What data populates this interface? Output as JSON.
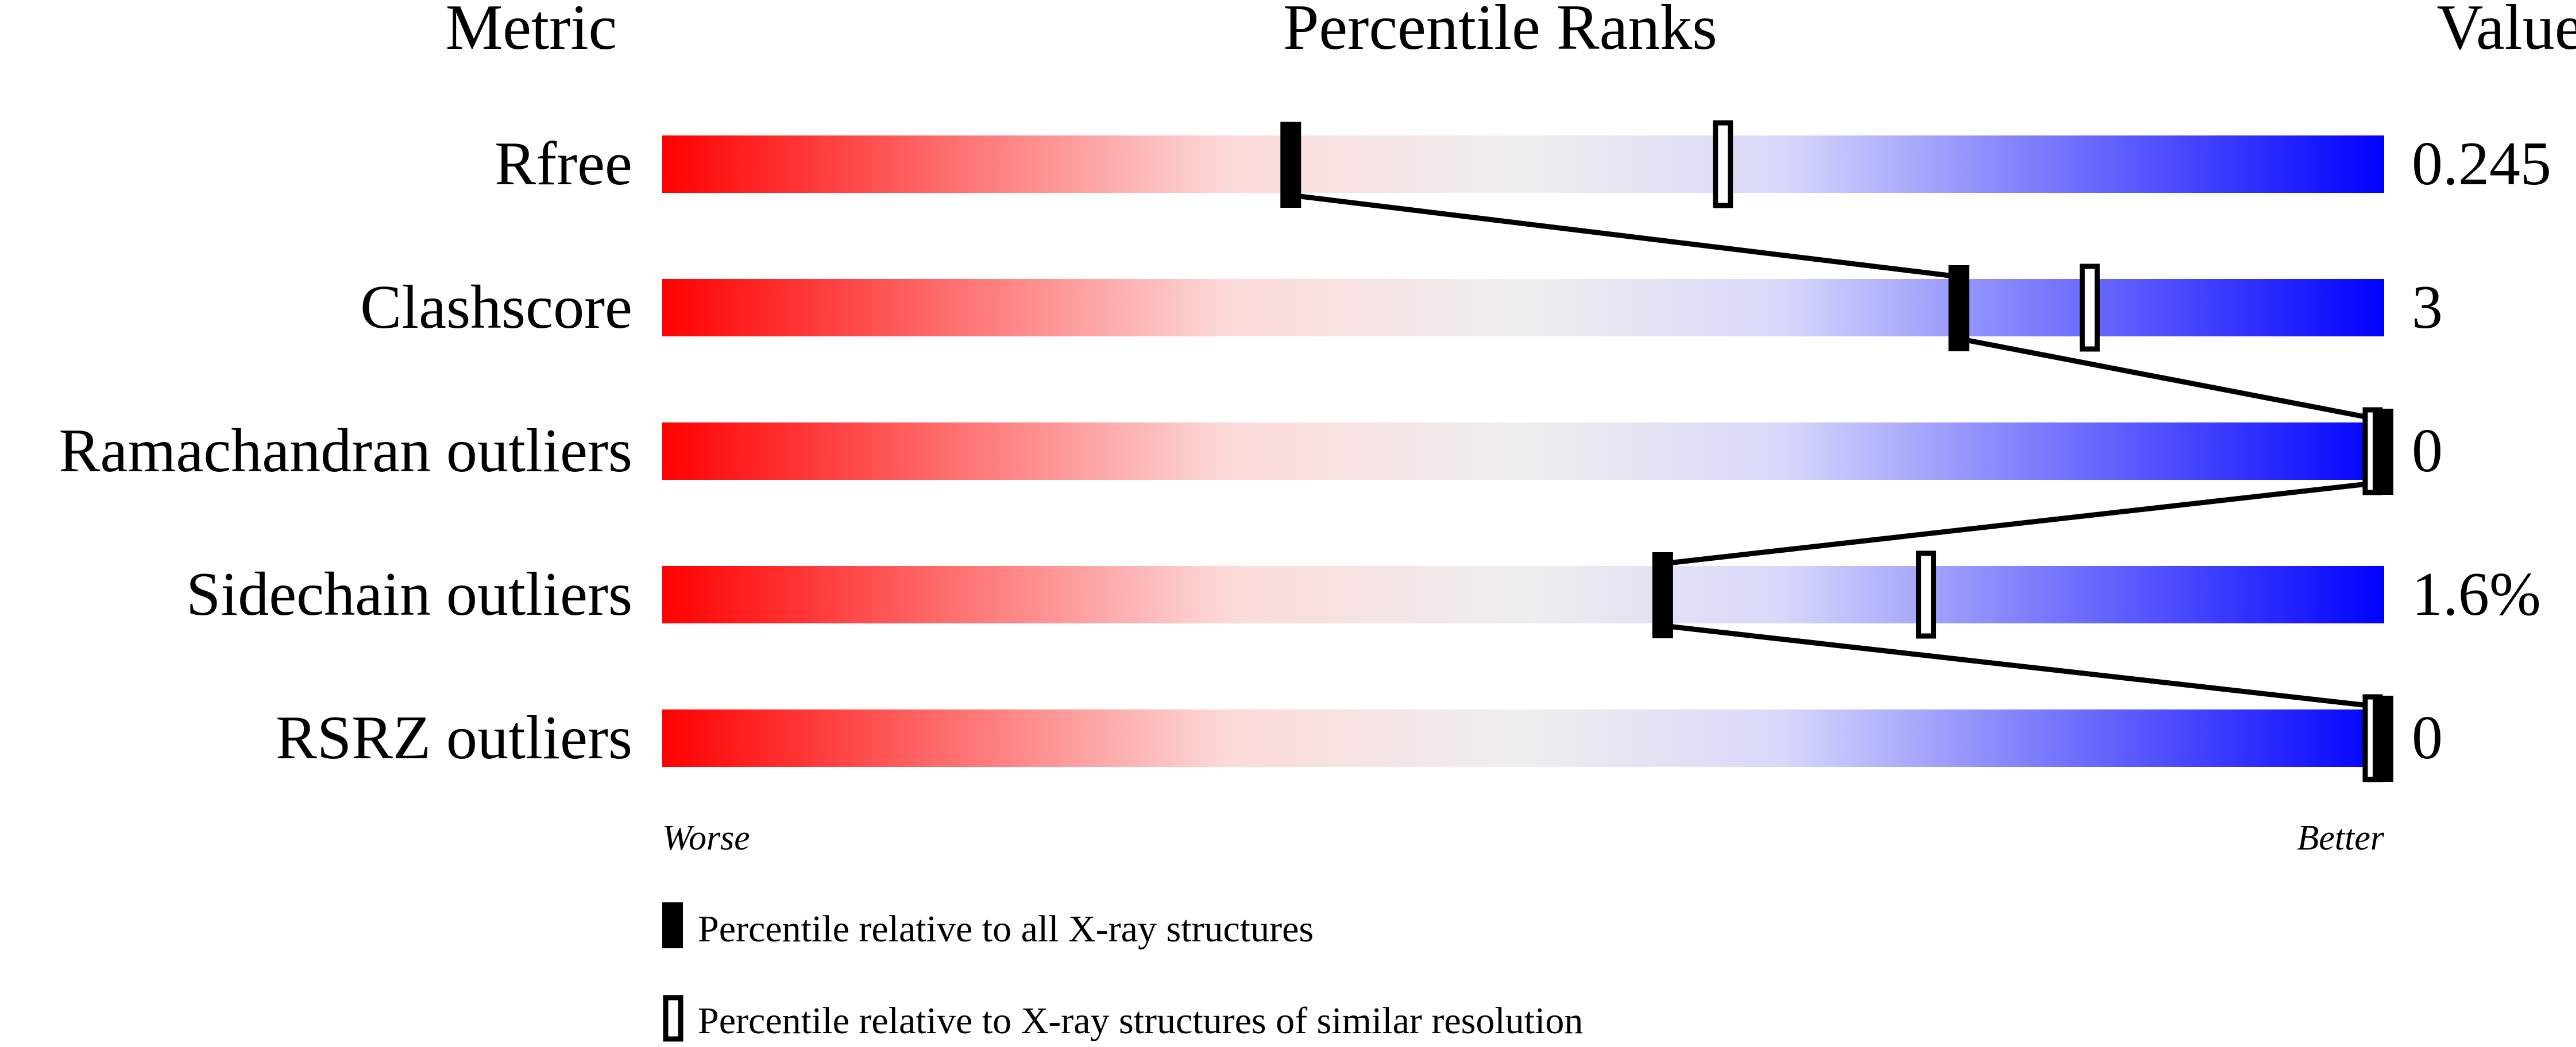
{
  "chart_data": {
    "type": "percentile-slider",
    "headers": {
      "metric": "Metric",
      "ranks": "Percentile Ranks",
      "value": "Value"
    },
    "xlim": [
      0,
      100
    ],
    "axis_labels": {
      "left": "Worse",
      "right": "Better"
    },
    "gradient_colors": [
      "#ff0000",
      "#fddada",
      "#eeeeee",
      "#d8d8fb",
      "#0000ff"
    ],
    "metrics": [
      {
        "name": "Rfree",
        "value": "0.245",
        "percentile_all": 36.5,
        "percentile_similar": 61.6
      },
      {
        "name": "Clashscore",
        "value": "3",
        "percentile_all": 75.3,
        "percentile_similar": 82.9
      },
      {
        "name": "Ramachandran outliers",
        "value": "0",
        "percentile_all": 100,
        "percentile_similar": 100
      },
      {
        "name": "Sidechain outliers",
        "value": "1.6%",
        "percentile_all": 58.1,
        "percentile_similar": 73.4
      },
      {
        "name": "RSRZ outliers",
        "value": "0",
        "percentile_all": 100,
        "percentile_similar": 100
      }
    ],
    "legend": [
      {
        "marker": "filled",
        "label": "Percentile relative to all X-ray structures"
      },
      {
        "marker": "open",
        "label": "Percentile relative to X-ray structures of similar resolution"
      }
    ]
  }
}
